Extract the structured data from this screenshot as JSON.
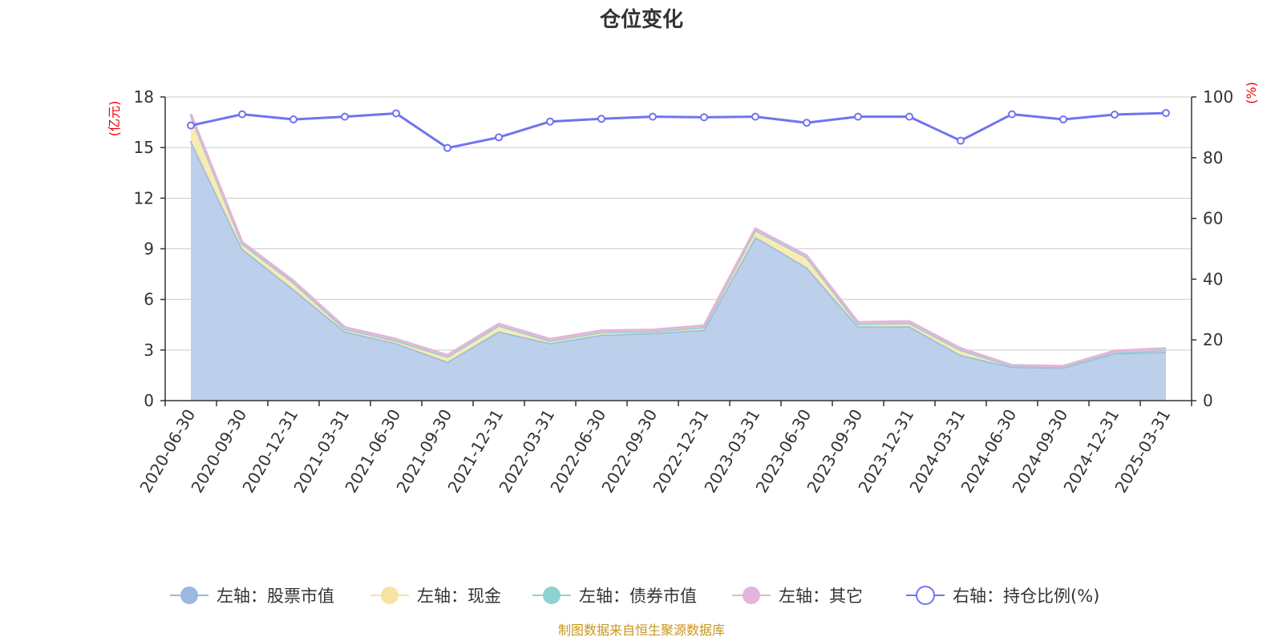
{
  "chart_data": {
    "type": "area",
    "title": "仓位变化",
    "left_unit": "(亿元)",
    "right_unit": "(%)",
    "categories": [
      "2020-06-30",
      "2020-09-30",
      "2020-12-31",
      "2021-03-31",
      "2021-06-30",
      "2021-09-30",
      "2021-12-31",
      "2022-03-31",
      "2022-06-30",
      "2022-09-30",
      "2022-12-31",
      "2023-03-31",
      "2023-06-30",
      "2023-09-30",
      "2023-12-31",
      "2024-03-31",
      "2024-06-30",
      "2024-09-30",
      "2024-12-31",
      "2025-03-31"
    ],
    "left_axis": {
      "min": 0,
      "max": 18,
      "ticks": [
        0,
        3,
        6,
        9,
        12,
        15,
        18
      ]
    },
    "right_axis": {
      "min": 0,
      "max": 100,
      "ticks": [
        0,
        20,
        40,
        60,
        80,
        100
      ]
    },
    "series": [
      {
        "name": "左轴：股票市值",
        "axis": "left",
        "color": "#9ab8e0",
        "fill": "#b8cdea",
        "values": [
          15.4,
          9.0,
          6.6,
          4.1,
          3.4,
          2.3,
          4.1,
          3.4,
          3.9,
          4.0,
          4.2,
          9.7,
          7.9,
          4.4,
          4.4,
          2.7,
          2.0,
          1.95,
          2.8,
          2.9
        ]
      },
      {
        "name": "左轴：现金",
        "axis": "left",
        "color": "#f6e3a2",
        "fill": "#f9eab0",
        "values": [
          1.5,
          0.3,
          0.4,
          0.15,
          0.15,
          0.3,
          0.35,
          0.15,
          0.15,
          0.1,
          0.15,
          0.4,
          0.6,
          0.15,
          0.2,
          0.3,
          0.05,
          0.05,
          0.05,
          0.1
        ]
      },
      {
        "name": "左轴：债券市值",
        "axis": "left",
        "color": "#8ed1d1",
        "fill": "#a8dcdc",
        "values": [
          0,
          0,
          0,
          0,
          0,
          0,
          0,
          0,
          0,
          0,
          0,
          0,
          0,
          0,
          0,
          0,
          0,
          0,
          0,
          0
        ]
      },
      {
        "name": "左轴：其它",
        "axis": "left",
        "color": "#e5b4da",
        "fill": "#edc7e5",
        "values": [
          0.1,
          0.1,
          0.1,
          0.1,
          0.1,
          0.1,
          0.1,
          0.1,
          0.1,
          0.1,
          0.1,
          0.1,
          0.1,
          0.1,
          0.1,
          0.1,
          0.05,
          0.05,
          0.1,
          0.1
        ]
      },
      {
        "name": "右轴：持仓比例(%)",
        "axis": "right",
        "color": "#7074ee",
        "values": [
          90.6,
          94.3,
          92.6,
          93.5,
          94.6,
          83.2,
          86.7,
          91.9,
          92.8,
          93.5,
          93.3,
          93.5,
          91.5,
          93.5,
          93.5,
          85.6,
          94.3,
          92.6,
          94.2,
          94.7
        ]
      }
    ],
    "legend_position": "bottom",
    "grid": true
  },
  "footer": {
    "source": "制图数据来自恒生聚源数据库"
  }
}
